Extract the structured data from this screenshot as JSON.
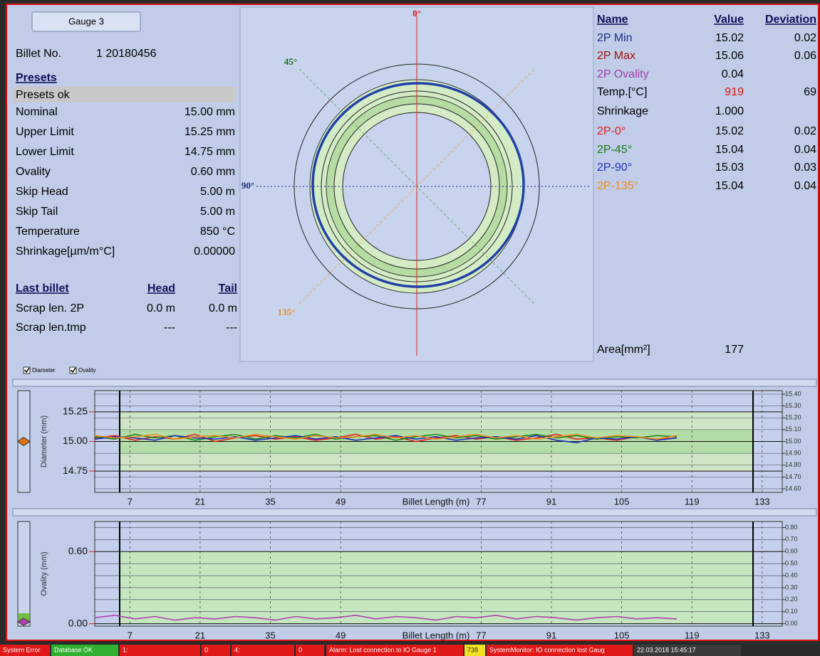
{
  "gauge_button": "Gauge 3",
  "billet": {
    "label": "Billet No.",
    "value": "1 20180456"
  },
  "presets": {
    "title": "Presets",
    "status": "Presets ok",
    "rows": [
      [
        "Nominal",
        "15.00 mm"
      ],
      [
        "Upper Limit",
        "15.25 mm"
      ],
      [
        "Lower Limit",
        "14.75 mm"
      ],
      [
        "Ovality",
        "0.60 mm"
      ],
      [
        "Skip Head",
        "5.00 m"
      ],
      [
        "Skip Tail",
        "5.00 m"
      ],
      [
        "Temperature",
        "850 °C"
      ],
      [
        "Shrinkage[µm/m°C]",
        "0.00000"
      ]
    ]
  },
  "last_billet": {
    "title": "Last billet",
    "head": "Head",
    "tail": "Tail",
    "rows": [
      [
        "Scrap len. 2P",
        "0.0 m",
        "0.0 m"
      ],
      [
        "Scrap len.tmp",
        "---",
        "---"
      ]
    ]
  },
  "polar": {
    "angles": [
      {
        "label": "0°",
        "color": "#e01010"
      },
      {
        "label": "45°",
        "color": "#1a6a1a"
      },
      {
        "label": "90°",
        "color": "#1a2a80"
      },
      {
        "label": "135°",
        "color": "#f08a20"
      }
    ]
  },
  "measurements": {
    "headers": [
      "Name",
      "Value",
      "Deviation"
    ],
    "rows": [
      {
        "name": "2P Min",
        "value": "15.02",
        "deviation": "0.02",
        "color": "#1e2e80"
      },
      {
        "name": "2P Max",
        "value": "15.06",
        "deviation": "0.06",
        "color": "#a01010"
      },
      {
        "name": "2P Ovality",
        "value": "0.04",
        "color": "#a040a8"
      },
      {
        "name": "Temp.[°C]",
        "value": "919",
        "deviation": "69",
        "color": "#000000",
        "value_color": "#e01010"
      },
      {
        "name": "Shrinkage",
        "value": "1.000",
        "color": "#000000"
      },
      {
        "name": "2P-0°",
        "value": "15.02",
        "deviation": "0.02",
        "color": "#e02020"
      },
      {
        "name": "2P-45°",
        "value": "15.04",
        "deviation": "0.04",
        "color": "#1a7a1a"
      },
      {
        "name": "2P-90°",
        "value": "15.03",
        "deviation": "0.03",
        "color": "#2030c0"
      },
      {
        "name": "2P-135°",
        "value": "15.04",
        "deviation": "0.04",
        "color": "#f08a20"
      }
    ]
  },
  "area": {
    "label": "Area[mm²]",
    "value": "177"
  },
  "checkboxes": [
    "Diameter",
    "Ovality"
  ],
  "chart_data": [
    {
      "type": "line",
      "xlabel": "Billet Length (m)",
      "ylabel": "Diameter (mm)",
      "xlim": [
        0,
        137
      ],
      "xticks": [
        7,
        21,
        35,
        49,
        77,
        91,
        105,
        119,
        133
      ],
      "ylim": [
        14.57,
        15.43
      ],
      "yticks": [
        14.75,
        {
          "value": 15,
          "label": "15.00"
        },
        15.25
      ],
      "y2lim": [
        14.57,
        15.43
      ],
      "y2ticks": [
        {
          "value": 15.4,
          "label": "15.40"
        },
        {
          "value": 15.3,
          "label": "15.30"
        },
        {
          "value": 15.2,
          "label": "15.20"
        },
        {
          "value": 15.1,
          "label": "15.10"
        },
        {
          "value": 15,
          "label": "15.00"
        },
        {
          "value": 14.9,
          "label": "14.90"
        },
        {
          "value": 14.8,
          "label": "14.80"
        },
        {
          "value": 14.7,
          "label": "14.70"
        },
        {
          "value": 14.6,
          "label": "14.60"
        }
      ],
      "x": [
        0,
        4,
        8,
        12,
        16,
        20,
        24,
        28,
        32,
        36,
        40,
        44,
        48,
        52,
        56,
        60,
        64,
        68,
        72,
        76,
        80,
        84,
        88,
        92,
        96,
        100,
        104,
        108,
        112,
        116
      ],
      "series": [
        {
          "color": "#e02020",
          "values": [
            15.03,
            15.05,
            15.01,
            15.04,
            15.02,
            15.06,
            15.0,
            15.03,
            15.05,
            15.02,
            15.04,
            15.01,
            15.03,
            15.06,
            15.02,
            15.04,
            15.0,
            15.03,
            15.05,
            15.02,
            15.04,
            15.01,
            15.03,
            15.06,
            15.02,
            15.03,
            15.01,
            15.04,
            15.02,
            15.03
          ]
        },
        {
          "color": "#1a8a1a",
          "values": [
            15.04,
            15.02,
            15.06,
            15.03,
            15.05,
            15.01,
            15.04,
            15.06,
            15.02,
            15.05,
            15.03,
            15.06,
            15.02,
            15.04,
            15.05,
            15.01,
            15.04,
            15.06,
            15.03,
            15.05,
            15.02,
            15.04,
            15.06,
            15.03,
            15.05,
            15.02,
            15.04,
            15.03,
            15.05,
            15.04
          ]
        },
        {
          "color": "#2030c0",
          "values": [
            15.02,
            15.04,
            15.03,
            15.01,
            15.05,
            15.03,
            15.02,
            15.04,
            15.01,
            15.03,
            15.05,
            15.02,
            15.04,
            15.01,
            15.03,
            15.05,
            15.02,
            15.04,
            15.01,
            15.03,
            15.04,
            15.02,
            15.05,
            15.01,
            14.99,
            15.03,
            15.02,
            15.04,
            15.01,
            15.03
          ]
        },
        {
          "color": "#f08a20",
          "values": [
            15.05,
            15.03,
            15.04,
            15.06,
            15.02,
            15.04,
            15.05,
            15.03,
            15.06,
            15.04,
            15.02,
            15.05,
            15.03,
            15.04,
            15.06,
            15.03,
            15.05,
            15.02,
            15.04,
            15.06,
            15.03,
            15.05,
            15.02,
            15.04,
            15.06,
            15.03,
            15.05,
            15.04,
            15.02,
            15.05
          ]
        }
      ]
    },
    {
      "type": "line",
      "xlabel": "Billet Length (m)",
      "ylabel": "Ovality (mm)",
      "xlim": [
        0,
        137
      ],
      "xticks": [
        7,
        21,
        35,
        49,
        77,
        91,
        105,
        119,
        133
      ],
      "ylim": [
        -0.02,
        0.85
      ],
      "yticks": [
        {
          "value": 0,
          "label": "0.00"
        },
        {
          "value": 0.6,
          "label": "0.60"
        }
      ],
      "y2lim": [
        -0.02,
        0.85
      ],
      "y2ticks": [
        {
          "value": 0.8,
          "label": "0.80"
        },
        {
          "value": 0.7,
          "label": "0.70"
        },
        {
          "value": 0.6,
          "label": "0.60"
        },
        {
          "value": 0.5,
          "label": "0.50"
        },
        {
          "value": 0.4,
          "label": "0.40"
        },
        {
          "value": 0.3,
          "label": "0.30"
        },
        {
          "value": 0.2,
          "label": "0.20"
        },
        {
          "value": 0.1,
          "label": "0.10"
        },
        {
          "value": 0,
          "label": "0.00"
        }
      ],
      "x": [
        0,
        4,
        8,
        12,
        16,
        20,
        24,
        28,
        32,
        36,
        40,
        44,
        48,
        52,
        56,
        60,
        64,
        68,
        72,
        76,
        80,
        84,
        88,
        92,
        96,
        100,
        104,
        108,
        112,
        116
      ],
      "series": [
        {
          "color": "#b040b0",
          "values": [
            0.05,
            0.07,
            0.04,
            0.06,
            0.03,
            0.05,
            0.04,
            0.06,
            0.05,
            0.03,
            0.06,
            0.04,
            0.05,
            0.07,
            0.04,
            0.06,
            0.05,
            0.03,
            0.06,
            0.05,
            0.07,
            0.04,
            0.06,
            0.05,
            0.03,
            0.05,
            0.06,
            0.04,
            0.05,
            0.04
          ]
        }
      ]
    }
  ],
  "status_bar": [
    {
      "text": "System Error",
      "bg": "#e01818"
    },
    {
      "text": "Database OK",
      "bg": "#30b030"
    },
    {
      "text": "1:",
      "bg": "#e01818"
    },
    {
      "text": "0",
      "bg": "#e01818"
    },
    {
      "text": "4:",
      "bg": "#e01818"
    },
    {
      "text": "0",
      "bg": "#e01818"
    },
    {
      "text": "Alarm: Lost connection to IO Gauge 1",
      "bg": "#e01818"
    },
    {
      "text": "738",
      "bg": "#f0e020"
    },
    {
      "text": "SystemMonitor: IO connection lost Gaug",
      "bg": "#e01818"
    },
    {
      "text": "22.03.2018 15:45:17",
      "bg": "#3a3a3a"
    }
  ]
}
